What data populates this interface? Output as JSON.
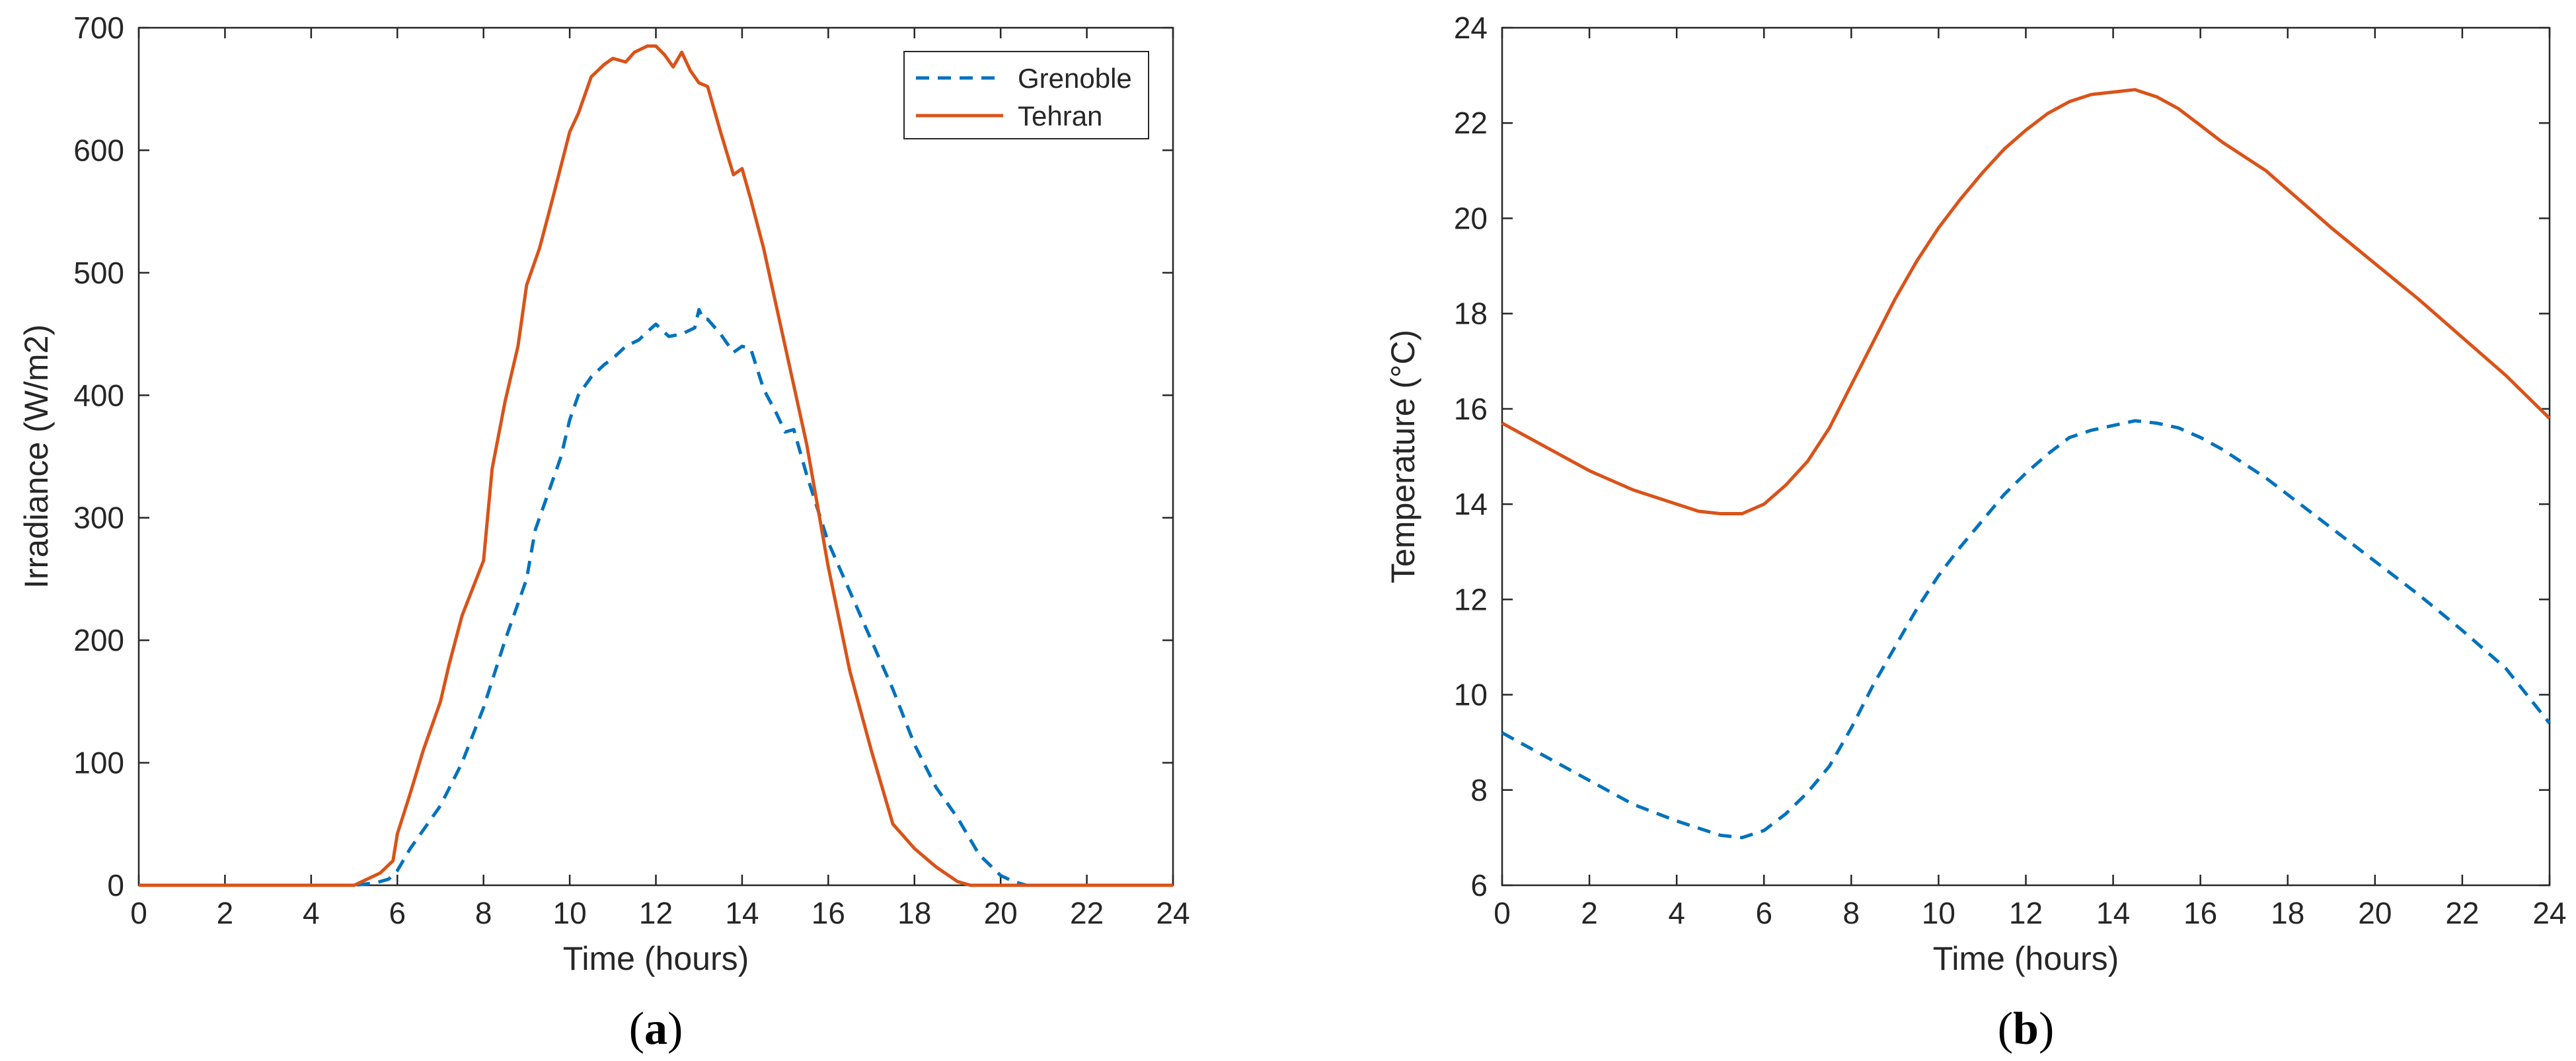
{
  "chart_data": [
    {
      "type": "line",
      "panel_label_open": "(",
      "panel_label_letter": "a",
      "panel_label_close": ")",
      "xlabel": "Time (hours)",
      "ylabel": "Irradiance (W/m2)",
      "xlim": [
        0,
        24
      ],
      "ylim": [
        0,
        700
      ],
      "xticks": [
        0,
        2,
        4,
        6,
        8,
        10,
        12,
        14,
        16,
        18,
        20,
        22,
        24
      ],
      "yticks": [
        0,
        100,
        200,
        300,
        400,
        500,
        600,
        700
      ],
      "grid": false,
      "legend": "top-right",
      "series": [
        {
          "name": "Grenoble",
          "color": "#0072BD",
          "style": "dashed",
          "x": [
            0,
            1,
            2,
            3,
            4,
            5,
            5.5,
            5.8,
            6.0,
            6.3,
            6.6,
            7.0,
            7.5,
            8.0,
            8.5,
            9.0,
            9.2,
            9.5,
            9.8,
            10.0,
            10.2,
            10.5,
            10.8,
            11.0,
            11.3,
            11.6,
            11.9,
            12.0,
            12.3,
            12.6,
            12.9,
            13.0,
            13.1,
            13.2,
            13.5,
            13.8,
            14.0,
            14.2,
            14.5,
            14.8,
            15.0,
            15.2,
            15.5,
            16.0,
            16.5,
            17.0,
            17.5,
            18.0,
            18.5,
            19.0,
            19.5,
            20.0,
            20.3,
            20.6,
            21,
            22,
            23,
            24
          ],
          "y": [
            0,
            0,
            0,
            0,
            0,
            0,
            2,
            5,
            12,
            30,
            45,
            65,
            100,
            145,
            200,
            250,
            290,
            320,
            350,
            380,
            400,
            415,
            425,
            430,
            440,
            445,
            455,
            458,
            448,
            450,
            455,
            470,
            462,
            462,
            450,
            435,
            440,
            438,
            405,
            385,
            370,
            372,
            335,
            280,
            240,
            200,
            160,
            115,
            80,
            55,
            25,
            8,
            3,
            0,
            0,
            0,
            0,
            0
          ]
        },
        {
          "name": "Tehran",
          "color": "#D95319",
          "style": "solid",
          "x": [
            0,
            1,
            2,
            3,
            4,
            5,
            5.3,
            5.6,
            5.9,
            6.0,
            6.3,
            6.6,
            7.0,
            7.2,
            7.5,
            8.0,
            8.2,
            8.5,
            8.8,
            9.0,
            9.3,
            9.6,
            10.0,
            10.2,
            10.5,
            10.8,
            11.0,
            11.3,
            11.5,
            11.8,
            12.0,
            12.2,
            12.4,
            12.6,
            12.8,
            13.0,
            13.2,
            13.5,
            13.8,
            14.0,
            14.2,
            14.5,
            15.0,
            15.5,
            16.0,
            16.5,
            17.0,
            17.5,
            18.0,
            18.5,
            19.0,
            19.3,
            19.6,
            20,
            21,
            22,
            23,
            24
          ],
          "y": [
            0,
            0,
            0,
            0,
            0,
            0,
            5,
            10,
            20,
            42,
            75,
            110,
            150,
            180,
            220,
            265,
            340,
            395,
            440,
            490,
            520,
            560,
            615,
            630,
            660,
            670,
            675,
            672,
            680,
            685,
            685,
            678,
            668,
            680,
            665,
            655,
            652,
            615,
            580,
            585,
            560,
            520,
            440,
            360,
            260,
            175,
            110,
            50,
            30,
            15,
            3,
            0,
            0,
            0,
            0,
            0,
            0,
            0
          ]
        }
      ]
    },
    {
      "type": "line",
      "panel_label_open": "(",
      "panel_label_letter": "b",
      "panel_label_close": ")",
      "xlabel": "Time (hours)",
      "ylabel": "Temperature (°C)",
      "xlim": [
        0,
        24
      ],
      "ylim": [
        6,
        24
      ],
      "xticks": [
        0,
        2,
        4,
        6,
        8,
        10,
        12,
        14,
        16,
        18,
        20,
        22,
        24
      ],
      "yticks": [
        6,
        8,
        10,
        12,
        14,
        16,
        18,
        20,
        22,
        24
      ],
      "grid": false,
      "series": [
        {
          "name": "Grenoble",
          "color": "#0072BD",
          "style": "dashed",
          "x": [
            0,
            1,
            2,
            3,
            4,
            5,
            5.5,
            6,
            6.5,
            7,
            7.5,
            8,
            8.5,
            9,
            9.5,
            10,
            10.5,
            11,
            11.5,
            12,
            12.5,
            13,
            13.5,
            14,
            14.5,
            15,
            15.5,
            16,
            16.5,
            17,
            17.5,
            18,
            18.5,
            19,
            19.5,
            20,
            21,
            22,
            23,
            24
          ],
          "y": [
            9.2,
            8.7,
            8.2,
            7.7,
            7.35,
            7.05,
            7.0,
            7.15,
            7.5,
            7.95,
            8.5,
            9.3,
            10.2,
            11.0,
            11.8,
            12.5,
            13.1,
            13.65,
            14.2,
            14.65,
            15.05,
            15.4,
            15.55,
            15.65,
            15.75,
            15.7,
            15.6,
            15.4,
            15.15,
            14.85,
            14.55,
            14.2,
            13.85,
            13.5,
            13.15,
            12.8,
            12.1,
            11.35,
            10.55,
            9.4
          ]
        },
        {
          "name": "Tehran",
          "color": "#D95319",
          "style": "solid",
          "x": [
            0,
            1,
            2,
            3,
            4,
            4.5,
            5,
            5.5,
            6,
            6.5,
            7,
            7.5,
            8,
            8.5,
            9,
            9.5,
            10,
            10.5,
            11,
            11.5,
            12,
            12.5,
            13,
            13.5,
            14,
            14.5,
            15,
            15.5,
            16,
            16.5,
            17,
            17.5,
            18,
            18.5,
            19,
            20,
            21,
            22,
            23,
            24
          ],
          "y": [
            15.7,
            15.2,
            14.7,
            14.3,
            14.0,
            13.85,
            13.8,
            13.8,
            14.0,
            14.4,
            14.9,
            15.6,
            16.5,
            17.4,
            18.3,
            19.1,
            19.8,
            20.4,
            20.95,
            21.45,
            21.85,
            22.2,
            22.45,
            22.6,
            22.65,
            22.7,
            22.55,
            22.3,
            21.95,
            21.6,
            21.3,
            21.0,
            20.6,
            20.2,
            19.8,
            19.05,
            18.3,
            17.5,
            16.7,
            15.8
          ]
        }
      ]
    }
  ]
}
